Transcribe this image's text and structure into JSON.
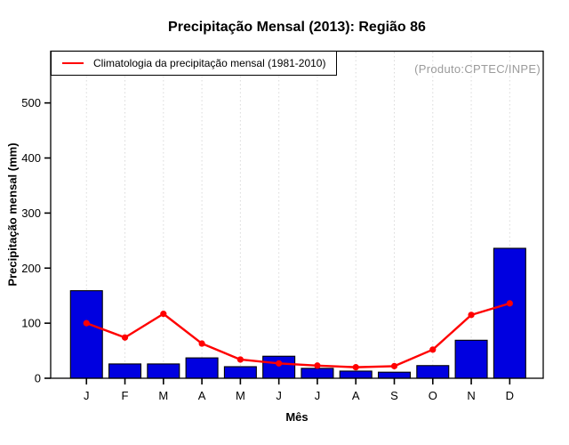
{
  "chart_data": {
    "type": "bar",
    "title": "Precipitação Mensal (2013): Região 86",
    "xlabel": "Mês",
    "ylabel": "Precipitação mensal (mm)",
    "annotation": "(Produto:CPTEC/INPE)",
    "annotation_color": "#9b9b9b",
    "categories": [
      "J",
      "F",
      "M",
      "A",
      "M",
      "J",
      "J",
      "A",
      "S",
      "O",
      "N",
      "D"
    ],
    "series": [
      {
        "name": "Precipitação mensal 2013",
        "type": "bar",
        "color": "#0000e0",
        "values": [
          159,
          26,
          26,
          37,
          21,
          40,
          18,
          13,
          11,
          23,
          69,
          236
        ]
      },
      {
        "name": "Climatologia da precipitação mensal (1981-2010)",
        "type": "line",
        "color": "#ff0000",
        "values": [
          100,
          74,
          117,
          63,
          34,
          27,
          23,
          20,
          22,
          52,
          115,
          136
        ]
      }
    ],
    "ylim": [
      0,
      594
    ],
    "yticks": [
      0,
      100,
      200,
      300,
      400,
      500
    ],
    "grid": "vertical-dotted",
    "grid_color": "#d9d9d9",
    "legend_position": "top-left"
  }
}
